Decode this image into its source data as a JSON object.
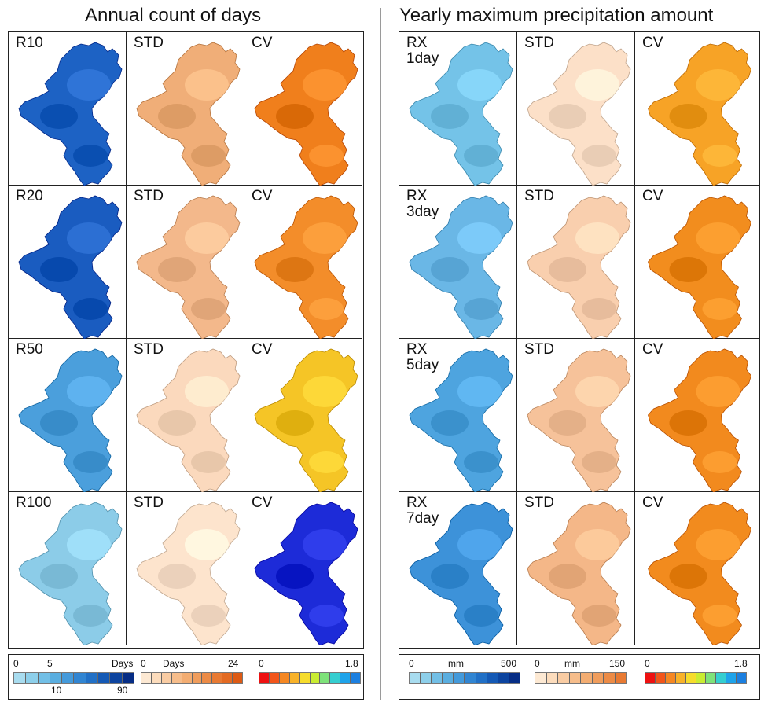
{
  "left_title": "Annual count of days",
  "right_title": "Yearly maximum precipitation amount",
  "left_rows": [
    {
      "index": "R10",
      "std": "STD",
      "cv": "CV"
    },
    {
      "index": "R20",
      "std": "STD",
      "cv": "CV"
    },
    {
      "index": "R50",
      "std": "STD",
      "cv": "CV"
    },
    {
      "index": "R100",
      "std": "STD",
      "cv": "CV"
    }
  ],
  "right_rows": [
    {
      "index": "RX\n1day",
      "std": "STD",
      "cv": "CV"
    },
    {
      "index": "RX\n3day",
      "std": "STD",
      "cv": "CV"
    },
    {
      "index": "RX\n5day",
      "std": "STD",
      "cv": "CV"
    },
    {
      "index": "RX\n7day",
      "std": "STD",
      "cv": "CV"
    }
  ],
  "legends": {
    "days_index": {
      "min": "0",
      "tick1": "5",
      "unit": "Days",
      "tick2": "10",
      "max": "90",
      "colors": [
        "#a8dcef",
        "#8dcfea",
        "#72bfe6",
        "#5aaee0",
        "#449adb",
        "#3185d2",
        "#2170c6",
        "#1459b5",
        "#0c449f",
        "#062d85"
      ]
    },
    "days_std": {
      "min": "0",
      "unit": "Days",
      "max": "24",
      "colors": [
        "#fde9d3",
        "#fcdcbc",
        "#f9cca3",
        "#f6bd8b",
        "#f3ad72",
        "#f09d5c",
        "#ec8b46",
        "#e87a33",
        "#e36a22",
        "#dd5a14"
      ]
    },
    "days_cv": {
      "min": "0",
      "max": "1.8",
      "colors": [
        "#ee1111",
        "#f2551a",
        "#f58722",
        "#f8b229",
        "#f6dc2c",
        "#c9ec32",
        "#7ee27a",
        "#35ced0",
        "#1ea3ea",
        "#1b7fe0"
      ]
    },
    "mm_index": {
      "min": "0",
      "unit": "mm",
      "max": "500",
      "colors": [
        "#a8dcef",
        "#8dcfea",
        "#72bfe6",
        "#5aaee0",
        "#449adb",
        "#3185d2",
        "#2170c6",
        "#1459b5",
        "#0c449f",
        "#062d85"
      ]
    },
    "mm_std": {
      "min": "0",
      "unit": "mm",
      "max": "150",
      "colors": [
        "#fde9d3",
        "#fcdcbc",
        "#f9cca3",
        "#f6bd8b",
        "#f3ad72",
        "#f09d5c",
        "#ec8b46",
        "#e87a33"
      ]
    },
    "mm_cv": {
      "min": "0",
      "max": "1.8",
      "colors": [
        "#ee1111",
        "#f2551a",
        "#f58722",
        "#f8b229",
        "#f6dc2c",
        "#c9ec32",
        "#7ee27a",
        "#35ced0",
        "#1ea3ea",
        "#1b7fe0"
      ]
    }
  },
  "map_fills": {
    "left": [
      [
        "#1d62c4",
        "#f0ae78",
        "#f07f1c"
      ],
      [
        "#1a5cc0",
        "#f3b88b",
        "#f38d2a"
      ],
      [
        "#4b9fdc",
        "#fbd9bd",
        "#f5c526"
      ],
      [
        "#8ccce8",
        "#fde4cd",
        "#1d2bd8"
      ]
    ],
    "right": [
      [
        "#74c3e8",
        "#fce0c8",
        "#f7a326"
      ],
      [
        "#6ab7e6",
        "#f9cfae",
        "#f28d1e"
      ],
      [
        "#4ea4df",
        "#f6c29a",
        "#f28a1e"
      ],
      [
        "#3d92d9",
        "#f4b788",
        "#f28b1e"
      ]
    ]
  }
}
